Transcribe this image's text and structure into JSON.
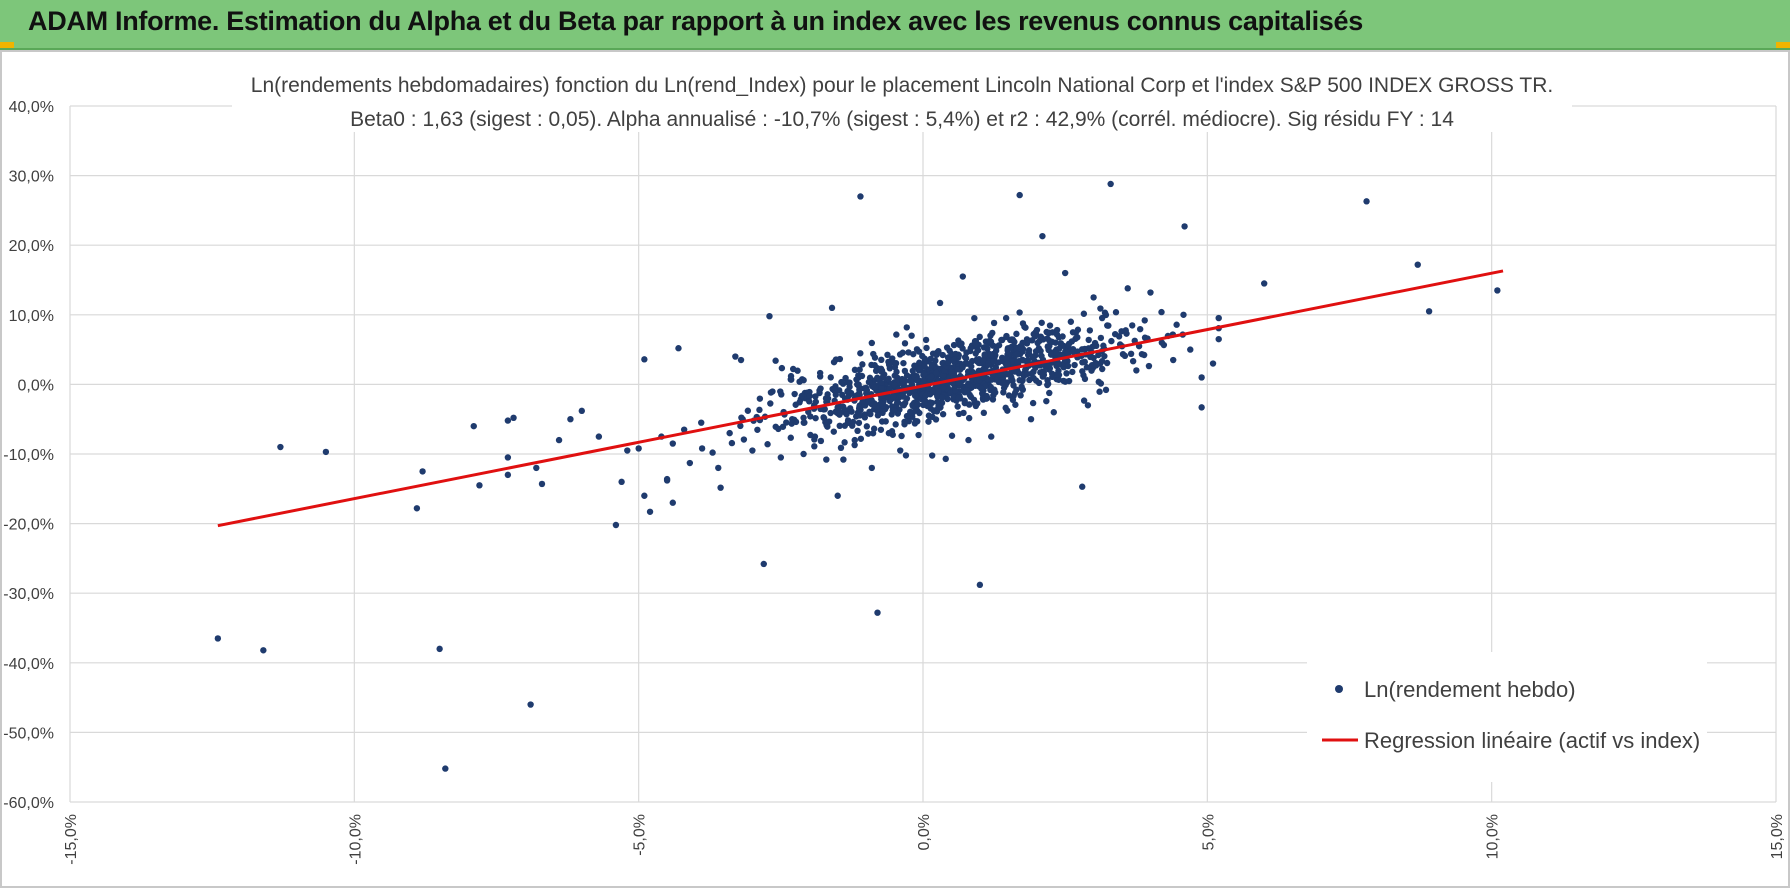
{
  "header": {
    "title": "ADAM Informe. Estimation du Alpha et du Beta par rapport à un index avec les revenus connus capitalisés"
  },
  "colors": {
    "header_bg": "#7dc67a",
    "points": "#1f3b6e",
    "regression": "#e01010",
    "grid": "#d9d9d9",
    "accent_corner": "#f0b400"
  },
  "chart_data": {
    "type": "scatter",
    "title": "Ln(rendements hebdomadaires) fonction du Ln(rend_Index) pour le placement Lincoln National Corp et l'index S&P 500 INDEX GROSS TR.",
    "subtitle": "Beta0 : 1,63  (sigest : 0,05).  Alpha annualisé : -10,7% (sigest : 5,4%) et r2 : 42,9% (corrél. médiocre). Sig résidu FY : 14",
    "xlim": [
      -15,
      15
    ],
    "ylim": [
      -60,
      40
    ],
    "x_ticks": [
      -15,
      -10,
      -5,
      0,
      5,
      10,
      15
    ],
    "y_ticks": [
      40,
      30,
      20,
      10,
      0,
      -10,
      -20,
      -30,
      -40,
      -50,
      -60
    ],
    "x_tick_labels": [
      "-15,0%",
      "-10,0%",
      "-5,0%",
      "0,0%",
      "5,0%",
      "10,0%",
      "15,0%"
    ],
    "y_tick_labels": [
      "40,0%",
      "30,0%",
      "20,0%",
      "10,0%",
      "0,0%",
      "-10,0%",
      "-20,0%",
      "-30,0%",
      "-40,0%",
      "-50,0%",
      "-60,0%"
    ],
    "grid": true,
    "legend_position": "bottom-right",
    "series": [
      {
        "name": "Ln(rendement hebdo)",
        "kind": "points",
        "color": "#1f3b6e",
        "points": [
          [
            -12.4,
            -36.5
          ],
          [
            -11.6,
            -38.2
          ],
          [
            -11.3,
            -9.0
          ],
          [
            -10.5,
            -9.7
          ],
          [
            -8.9,
            -17.8
          ],
          [
            -8.8,
            -12.5
          ],
          [
            -8.5,
            -38.0
          ],
          [
            -8.4,
            -55.2
          ],
          [
            -7.8,
            -14.5
          ],
          [
            -7.9,
            -6.0
          ],
          [
            -7.3,
            -5.2
          ],
          [
            -7.2,
            -4.8
          ],
          [
            -7.3,
            -13.0
          ],
          [
            -7.3,
            -10.5
          ],
          [
            -6.9,
            -46.0
          ],
          [
            -6.8,
            -12.0
          ],
          [
            -6.7,
            -14.3
          ],
          [
            -6.2,
            -5.0
          ],
          [
            -6.0,
            -3.8
          ],
          [
            -6.4,
            -8.0
          ],
          [
            -5.7,
            -7.5
          ],
          [
            -5.4,
            -20.2
          ],
          [
            -5.3,
            -14.0
          ],
          [
            -5.2,
            -9.5
          ],
          [
            -5.0,
            -9.2
          ],
          [
            -4.9,
            -16.0
          ],
          [
            -4.9,
            3.6
          ],
          [
            -4.8,
            -18.3
          ],
          [
            -4.6,
            -7.5
          ],
          [
            -4.4,
            -8.5
          ],
          [
            -4.3,
            5.2
          ],
          [
            -4.4,
            -17.0
          ],
          [
            -4.5,
            -13.8
          ],
          [
            -4.1,
            -11.3
          ],
          [
            -4.2,
            -6.5
          ],
          [
            -3.9,
            -5.5
          ],
          [
            -3.7,
            -9.8
          ],
          [
            -3.6,
            -12.0
          ],
          [
            -3.4,
            -7.0
          ],
          [
            -3.3,
            4.0
          ],
          [
            -3.2,
            3.5
          ],
          [
            -3.0,
            -9.5
          ],
          [
            -2.8,
            -25.8
          ],
          [
            -2.7,
            9.8
          ],
          [
            -2.5,
            -10.5
          ],
          [
            -2.3,
            -5.0
          ],
          [
            -2.1,
            -10.0
          ],
          [
            -1.9,
            -7.5
          ],
          [
            -1.7,
            -10.8
          ],
          [
            -1.6,
            11.0
          ],
          [
            -1.5,
            -16.0
          ],
          [
            -1.4,
            -10.8
          ],
          [
            -1.2,
            -8.0
          ],
          [
            -1.1,
            27.0
          ],
          [
            -0.9,
            -12.0
          ],
          [
            -0.8,
            -32.8
          ],
          [
            -0.6,
            -7.0
          ],
          [
            -0.4,
            -9.5
          ],
          [
            -0.3,
            -10.2
          ],
          [
            -0.2,
            7.0
          ],
          [
            0.4,
            -10.7
          ],
          [
            0.3,
            11.7
          ],
          [
            0.7,
            15.5
          ],
          [
            0.8,
            -8.0
          ],
          [
            1.0,
            -28.8
          ],
          [
            1.2,
            -7.5
          ],
          [
            1.7,
            27.2
          ],
          [
            1.9,
            -5.0
          ],
          [
            2.1,
            21.3
          ],
          [
            2.3,
            -4.0
          ],
          [
            2.5,
            16.0
          ],
          [
            2.6,
            9.0
          ],
          [
            2.8,
            -14.7
          ],
          [
            2.9,
            -3.0
          ],
          [
            3.0,
            12.5
          ],
          [
            3.3,
            28.8
          ],
          [
            3.2,
            10.3
          ],
          [
            3.6,
            13.8
          ],
          [
            4.0,
            13.2
          ],
          [
            4.6,
            22.7
          ],
          [
            4.9,
            1.0
          ],
          [
            4.9,
            -3.3
          ],
          [
            5.2,
            6.5
          ],
          [
            5.1,
            3.0
          ],
          [
            6.0,
            14.5
          ],
          [
            7.8,
            26.3
          ],
          [
            8.7,
            17.2
          ],
          [
            8.9,
            10.5
          ],
          [
            10.1,
            13.5
          ],
          [
            3.8,
            5.5
          ],
          [
            4.2,
            6.0
          ],
          [
            4.4,
            3.5
          ],
          [
            4.7,
            5.0
          ]
        ],
        "dense_cloud": {
          "count": 1150,
          "x_mean": 0.5,
          "x_sd": 1.5,
          "x_range": [
            -4.5,
            5.2
          ],
          "y_intercept": 0.05,
          "y_slope": 1.63,
          "y_sd": 2.6
        }
      },
      {
        "name": "Regression linéaire (actif vs index)",
        "kind": "line",
        "color": "#e01010",
        "points": [
          [
            -12.4,
            -20.3
          ],
          [
            10.2,
            16.3
          ]
        ]
      }
    ]
  }
}
